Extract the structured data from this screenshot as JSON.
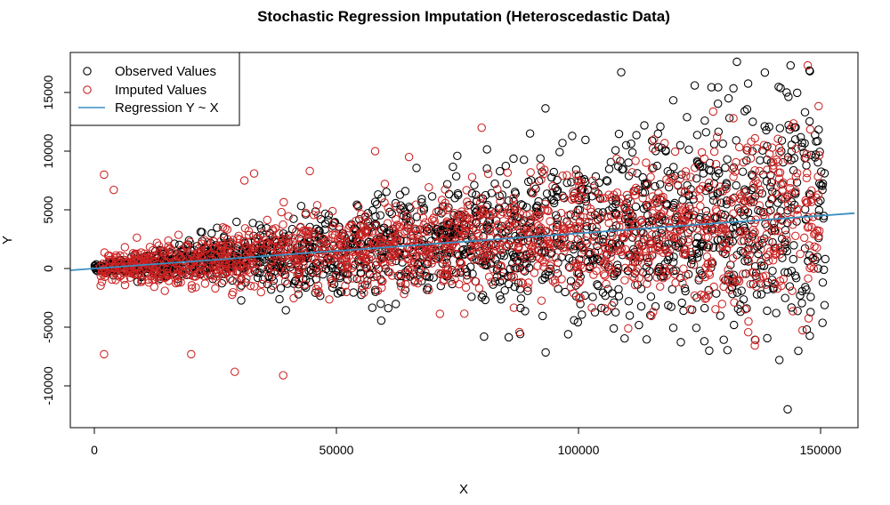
{
  "chart_data": {
    "type": "scatter",
    "title": "Stochastic Regression Imputation (Heteroscedastic Data)",
    "xlabel": "X",
    "ylabel": "Y",
    "xlim": [
      -5000,
      157000
    ],
    "ylim": [
      -13000,
      18500
    ],
    "xticks": [
      0,
      50000,
      100000,
      150000
    ],
    "xtick_labels": [
      "0",
      "50000",
      "100000",
      "150000"
    ],
    "yticks": [
      -10000,
      -5000,
      0,
      5000,
      10000,
      15000
    ],
    "ytick_labels": [
      "-10000",
      "-5000",
      "0",
      "5000",
      "10000",
      "15000"
    ],
    "grid": false,
    "legend_position": "top-left",
    "series": [
      {
        "name": "Observed Values",
        "kind": "points",
        "marker": "open-circle",
        "color": "#000000",
        "generator": {
          "n": 1850,
          "x_range": [
            0,
            151000
          ],
          "slope": 0.03,
          "sd_slope": 0.035,
          "sd_intercept": 150
        },
        "x": [
          143800,
          131000,
          138500,
          147800,
          143200,
          124000,
          127000,
          80500,
          126000,
          143000,
          142000,
          136000,
          90000
        ],
        "y": [
          17300,
          14500,
          16700,
          16800,
          -12000,
          15600,
          -7000,
          -5800,
          -6200,
          15000,
          10900,
          12500,
          11500
        ]
      },
      {
        "name": "Imputed Values",
        "kind": "points",
        "marker": "open-circle",
        "color": "#cc2222",
        "generator": {
          "n": 1550,
          "x_range": [
            1000,
            150000
          ],
          "slope": 0.03,
          "sd_slope": 0.022,
          "sd_intercept": 600
        },
        "x": [
          2000,
          4000,
          20000,
          29000,
          39000,
          80000,
          31000,
          2000,
          33000,
          58000,
          44500,
          65000,
          132000
        ],
        "y": [
          8000,
          6700,
          -7300,
          -8800,
          -9100,
          12000,
          7500,
          -7300,
          8100,
          10000,
          8300,
          9500,
          12800
        ]
      },
      {
        "name": "Regression Y ~ X",
        "kind": "line",
        "color": "#3a8fc0",
        "slope": 0.03,
        "intercept": 0
      }
    ]
  }
}
